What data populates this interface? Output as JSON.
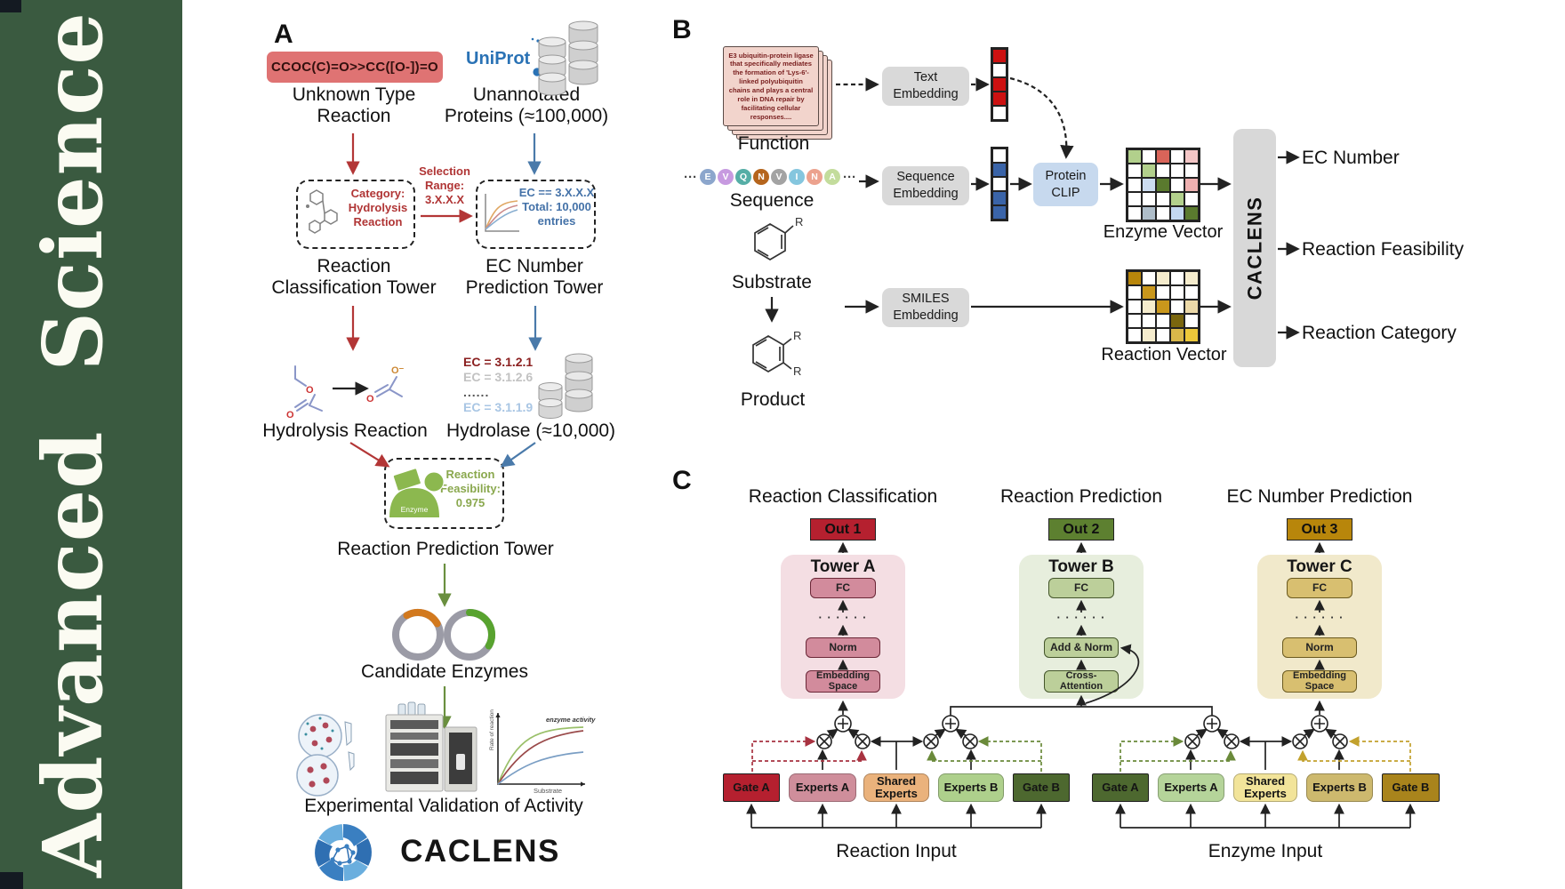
{
  "sidebar": {
    "journal": "Advanced Science",
    "bg_color": "#3a5a40"
  },
  "panelA": {
    "label": "A",
    "smiles_pill": "CCOC(C)=O>>CC([O-])=O",
    "pill_color": "#df7373",
    "unknown_reaction": "Unknown Type\nReaction",
    "uniprot": "UniProt",
    "uniprot_color": "#2a72b5",
    "unannotated": "Unannotated\nProteins (≈100,000)",
    "selection": "Selection\nRange:\n3.X.X.X",
    "category_box": "Category:\nHydrolysis\nReaction",
    "ec_box": "EC == 3.X.X.X\nTotal: 10,000\nentries",
    "tower_classification": "Reaction\nClassification Tower",
    "tower_ec": "EC Number\nPrediction Tower",
    "hydrolysis": "Hydrolysis Reaction",
    "ec_list": [
      "EC = 3.1.2.1",
      "EC = 3.1.2.6",
      "......",
      "EC = 3.1.1.9"
    ],
    "hydrolase": "Hydrolase (≈10,000)",
    "feasibility": "Reaction\nFeasibility:\n0.975",
    "enzyme_label": "Enzyme",
    "atom_o": "O",
    "atom_o_minus": "O⁻",
    "tower_prediction": "Reaction Prediction Tower",
    "candidates": "Candidate Enzymes",
    "validation": "Experimental Validation of Activity",
    "brand": "CACLENS",
    "plot": {
      "annotation": "enzyme activity",
      "ylabel": "Rate of reaction",
      "xlabel": "Substrate"
    },
    "arrow_colors": {
      "red": "#b33636",
      "blue": "#4a7aaa",
      "green": "#6a8f3f"
    }
  },
  "panelB": {
    "label": "B",
    "function_card": "E3 ubiquitin-protein ligase that specifically mediates the formation of 'Lys-6'-linked polyubiquitin chains and plays a central role in DNA repair by facilitating cellular responses....",
    "function_label": "Function",
    "ellipsis": "···",
    "sequence_letters": [
      {
        "ch": "E",
        "color": "#8ca6cc"
      },
      {
        "ch": "V",
        "color": "#c79ae0"
      },
      {
        "ch": "Q",
        "color": "#55aea6"
      },
      {
        "ch": "N",
        "color": "#b5651d"
      },
      {
        "ch": "V",
        "color": "#a3a3a3"
      },
      {
        "ch": "I",
        "color": "#85c6de"
      },
      {
        "ch": "N",
        "color": "#eca28e"
      },
      {
        "ch": "A",
        "color": "#c3dc9c"
      }
    ],
    "sequence_label": "Sequence",
    "substrate_label": "Substrate",
    "product_label": "Product",
    "r_group": "R",
    "text_embedding": "Text\nEmbedding",
    "sequence_embedding": "Sequence\nEmbedding",
    "smiles_embedding": "SMILES\nEmbedding",
    "protein_clip": "Protein\nCLIP",
    "text_vector": [
      "#cc1111",
      "#ffffff",
      "#cc1111",
      "#cc1111",
      "#ffffff"
    ],
    "sequence_vector": [
      "#ffffff",
      "#3a64a8",
      "#ffffff",
      "#3a64a8",
      "#3a64a8"
    ],
    "enzyme_grid": [
      [
        "#b2d08c",
        "#ffffff",
        "#d96459",
        "#ffffff",
        "#f3c6c6"
      ],
      [
        "#ffffff",
        "#b2d08c",
        "#ffffff",
        "#ffffff",
        "#ffffff"
      ],
      [
        "#ffffff",
        "#ccdcf0",
        "#5a7a2e",
        "#ffffff",
        "#eeb0b0"
      ],
      [
        "#ffffff",
        "#ffffff",
        "#ffffff",
        "#b2d08c",
        "#ffffff"
      ],
      [
        "#ffffff",
        "#aebdc9",
        "#ffffff",
        "#c3d8f0",
        "#5a7a2e"
      ]
    ],
    "reaction_grid": [
      [
        "#b8860b",
        "#ffffff",
        "#f5eccd",
        "#ffffff",
        "#f5eccd"
      ],
      [
        "#ffffff",
        "#c9971c",
        "#ffffff",
        "#ffffff",
        "#ffffff"
      ],
      [
        "#ffffff",
        "#f5eccd",
        "#c9971c",
        "#ffffff",
        "#ecd9a8"
      ],
      [
        "#ffffff",
        "#ffffff",
        "#ffffff",
        "#7a660e",
        "#ffffff"
      ],
      [
        "#ffffff",
        "#f5eccd",
        "#ffffff",
        "#d9b84a",
        "#ecc83a"
      ]
    ],
    "enzyme_vector_label": "Enzyme Vector",
    "reaction_vector_label": "Reaction Vector",
    "caclens_bar": "CACLENS",
    "outputs": [
      "EC Number",
      "Reaction Feasibility",
      "Reaction Category"
    ]
  },
  "panelC": {
    "label": "C",
    "columns": [
      {
        "title": "Reaction Classification",
        "out": "Out 1",
        "tower": "Tower A",
        "fc": "FC",
        "dots": "· · · · · ·",
        "mid": "Norm",
        "bottom": "Embedding\nSpace",
        "palette": {
          "container": "#f4dee3",
          "box": "#d28b9c",
          "border": "#6b2737",
          "out": "#b5202f"
        }
      },
      {
        "title": "Reaction Prediction",
        "out": "Out 2",
        "tower": "Tower B",
        "fc": "FC",
        "dots": "· · · · · ·",
        "mid": "Add & Norm",
        "bottom": "Cross-\nAttention",
        "palette": {
          "container": "#e7eedd",
          "box": "#bccf9a",
          "border": "#44552a",
          "out": "#5d8030"
        }
      },
      {
        "title": "EC Number Prediction",
        "out": "Out 3",
        "tower": "Tower C",
        "fc": "FC",
        "dots": "· · · · · ·",
        "mid": "Norm",
        "bottom": "Embedding\nSpace",
        "palette": {
          "container": "#f1e9cb",
          "box": "#d8bf70",
          "border": "#6b5a1f",
          "out": "#b8860b"
        }
      }
    ],
    "groups": [
      {
        "label": "Reaction Input",
        "boxes": [
          {
            "text": "Gate A",
            "bg": "#b5202f",
            "type": "gate"
          },
          {
            "text": "Experts A",
            "bg": "#cf8e9b"
          },
          {
            "text": "Shared\nExperts",
            "bg": "#eab27c"
          },
          {
            "text": "Experts B",
            "bg": "#aed08c"
          },
          {
            "text": "Gate B",
            "bg": "#4d682f",
            "type": "gate"
          }
        ]
      },
      {
        "label": "Enzyme Input",
        "boxes": [
          {
            "text": "Gate A",
            "bg": "#4d682f",
            "type": "gate"
          },
          {
            "text": "Experts A",
            "bg": "#b5d49a"
          },
          {
            "text": "Shared\nExperts",
            "bg": "#f2e49a"
          },
          {
            "text": "Experts B",
            "bg": "#cdb96e"
          },
          {
            "text": "Gate B",
            "bg": "#a9841c",
            "type": "gate"
          }
        ]
      }
    ],
    "gate_dash_colors": {
      "red": "#a83240",
      "green": "#6a8a3a",
      "yellow": "#c2a12d"
    }
  }
}
